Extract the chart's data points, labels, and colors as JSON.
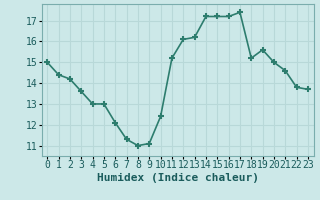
{
  "x": [
    0,
    1,
    2,
    3,
    4,
    5,
    6,
    7,
    8,
    9,
    10,
    11,
    12,
    13,
    14,
    15,
    16,
    17,
    18,
    19,
    20,
    21,
    22,
    23
  ],
  "y": [
    15.0,
    14.4,
    14.2,
    13.6,
    13.0,
    13.0,
    12.1,
    11.3,
    11.0,
    11.1,
    12.4,
    15.2,
    16.1,
    16.2,
    17.2,
    17.2,
    17.2,
    17.4,
    15.2,
    15.6,
    15.0,
    14.6,
    13.8,
    13.7
  ],
  "line_color": "#2d7d6e",
  "marker": "+",
  "marker_size": 5,
  "marker_lw": 1.5,
  "linewidth": 1.2,
  "xlabel": "Humidex (Indice chaleur)",
  "bg_color": "#cce8e8",
  "grid_color": "#b8d8d8",
  "xlim": [
    -0.5,
    23.5
  ],
  "ylim": [
    10.5,
    17.8
  ],
  "yticks": [
    11,
    12,
    13,
    14,
    15,
    16,
    17
  ],
  "xtick_labels": [
    "0",
    "1",
    "2",
    "3",
    "4",
    "5",
    "6",
    "7",
    "8",
    "9",
    "10",
    "11",
    "12",
    "13",
    "14",
    "15",
    "16",
    "17",
    "18",
    "19",
    "20",
    "21",
    "22",
    "23"
  ],
  "xlabel_fontsize": 8,
  "tick_fontsize": 7
}
